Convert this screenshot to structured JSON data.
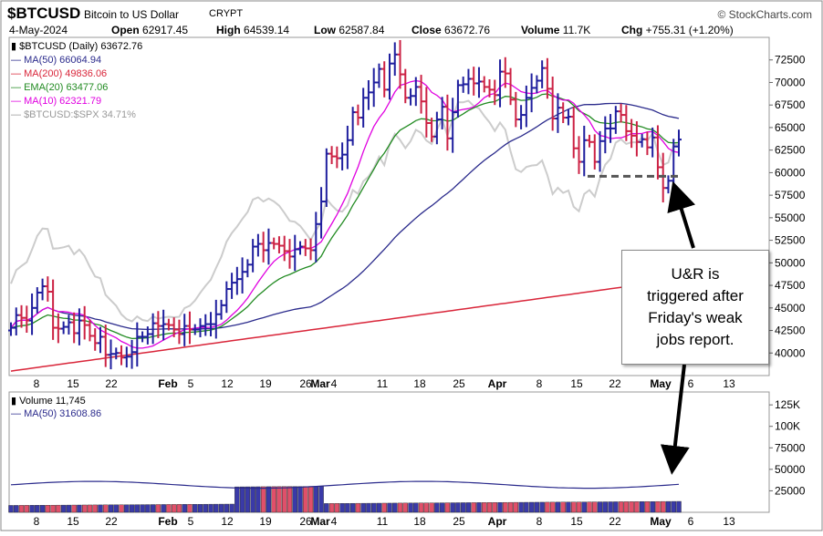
{
  "header": {
    "symbol": "$BTCUSD",
    "name": "Bitcoin to US Dollar",
    "exchange": "CRYPT",
    "brand": "© StockCharts.com",
    "date": "4-May-2024",
    "open_label": "Open",
    "open": "62917.45",
    "high_label": "High",
    "high": "64539.14",
    "low_label": "Low",
    "low": "62587.84",
    "close_label": "Close",
    "close": "63672.76",
    "volume_label": "Volume",
    "volume": "11.7K",
    "chg_label": "Chg",
    "chg": "+755.31 (+1.20%)"
  },
  "legend": [
    {
      "text": "$BTCUSD (Daily) 63672.76",
      "color": "#000000"
    },
    {
      "text": "MA(50) 66064.94",
      "color": "#2b2b8c"
    },
    {
      "text": "MA(200) 49836.06",
      "color": "#d9263a"
    },
    {
      "text": "EMA(20) 63477.06",
      "color": "#228b22"
    },
    {
      "text": "MA(10) 62321.79",
      "color": "#e000e0"
    },
    {
      "text": "$BTCUSD:$SPX 34.71%",
      "color": "#999999"
    }
  ],
  "volume_legend": [
    {
      "text": "Volume 11,745",
      "color": "#000000"
    },
    {
      "text": "MA(50) 31608.86",
      "color": "#2b2b8c"
    }
  ],
  "annotation": {
    "lines": [
      "U&R is",
      "triggered after",
      "Friday's weak",
      "jobs report."
    ]
  },
  "colors": {
    "up": "#1f1f9e",
    "down": "#cc2244",
    "vol_up": "#3a3aa8",
    "vol_down": "#e0506a"
  },
  "chart_data": {
    "type": "candlestick",
    "x_tick_labels": [
      "8",
      "15",
      "22",
      "Feb",
      "5",
      "12",
      "19",
      "26",
      "Mar",
      "4",
      "11",
      "18",
      "25",
      "Apr",
      "8",
      "15",
      "22",
      "May",
      "6",
      "13"
    ],
    "price_axis": {
      "ticks": [
        "40000",
        "42500",
        "45000",
        "47500",
        "50000",
        "52500",
        "55000",
        "57500",
        "60000",
        "62500",
        "65000",
        "67500",
        "70000",
        "72500"
      ],
      "ylim": [
        37500,
        75000
      ]
    },
    "volume_axis": {
      "ticks": [
        "25000",
        "50000",
        "75000",
        "100K",
        "125K"
      ],
      "ylim": [
        0,
        140000
      ]
    },
    "closes": [
      42800,
      44200,
      43900,
      43600,
      45000,
      46700,
      47400,
      46800,
      42800,
      42700,
      42900,
      43400,
      42200,
      43600,
      43100,
      41900,
      41100,
      41800,
      39800,
      39900,
      40000,
      39500,
      39600,
      40100,
      41800,
      41800,
      42100,
      43300,
      43000,
      43200,
      43100,
      42600,
      42100,
      43000,
      42600,
      42600,
      43000,
      43200,
      43200,
      44300,
      45300,
      47100,
      47800,
      48200,
      49000,
      49800,
      51800,
      52100,
      51400,
      52200,
      52100,
      51900,
      51300,
      50700,
      51500,
      51800,
      51600,
      51400,
      54300,
      56800,
      62100,
      61800,
      61600,
      62000,
      63600,
      66700,
      66100,
      68300,
      68900,
      70000,
      71500,
      69200,
      72100,
      73100,
      70900,
      68300,
      68500,
      69500,
      67900,
      65500,
      64000,
      65900,
      67300,
      63800,
      66700,
      69700,
      69800,
      70400,
      69900,
      70100,
      69500,
      69200,
      68600,
      71200,
      71000,
      68100,
      65900,
      66400,
      68300,
      69400,
      70200,
      71600,
      69300,
      66000,
      67200,
      66100,
      66200,
      62700,
      61200,
      63600,
      63400,
      61200,
      63500,
      64900,
      64900,
      66800,
      66400,
      64600,
      64100,
      63400,
      63700,
      62800,
      63900,
      60600,
      58300,
      59100,
      62900,
      63672
    ]
  }
}
